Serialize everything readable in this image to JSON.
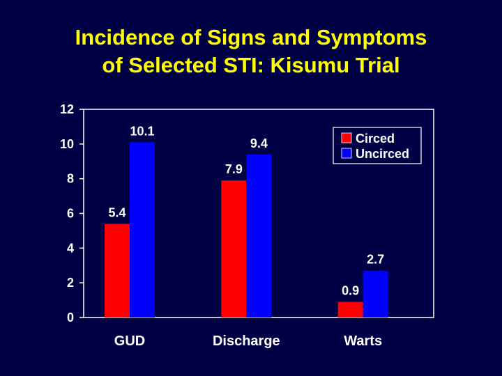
{
  "slide": {
    "title_line1": "Incidence of Signs and Symptoms",
    "title_line2": "of Selected STI: Kisumu Trial"
  },
  "chart_data": {
    "type": "bar",
    "categories": [
      "GUD",
      "Discharge",
      "Warts"
    ],
    "series": [
      {
        "name": "Circed",
        "values": [
          5.4,
          7.9,
          0.9
        ],
        "color": "#ff0000",
        "labels": [
          "5.4",
          "7.9",
          "0.9"
        ]
      },
      {
        "name": "Uncirced",
        "values": [
          10.1,
          9.4,
          2.7
        ],
        "color": "#0000ff",
        "labels": [
          "10.1",
          "9.4",
          "2.7"
        ]
      }
    ],
    "ylim": [
      0,
      12
    ],
    "yticks": [
      "0",
      "2",
      "4",
      "6",
      "8",
      "10",
      "12"
    ],
    "legend_position": "top-right",
    "plot_background": "#000044",
    "axis_color": "#ffffff"
  }
}
